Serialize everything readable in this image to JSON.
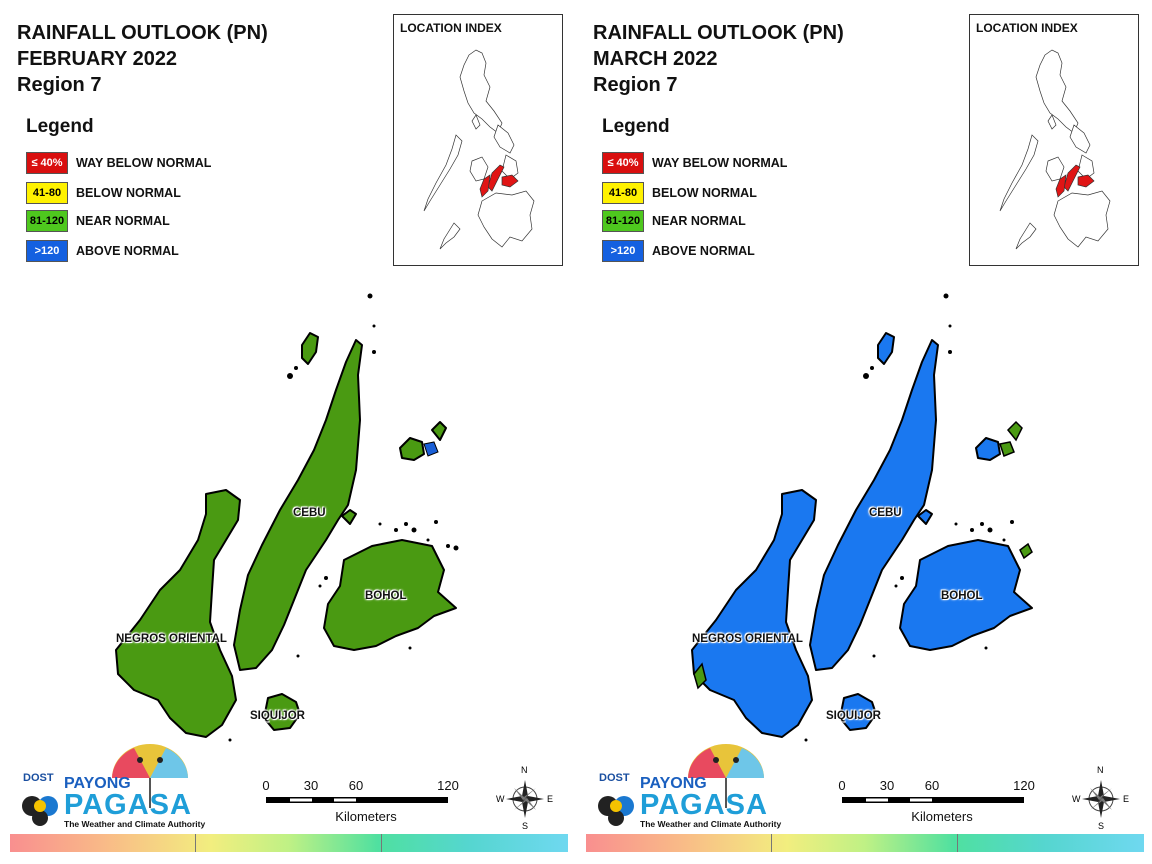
{
  "panels": [
    {
      "title_line1": "RAINFALL OUTLOOK (PN)",
      "title_line2": "FEBRUARY 2022",
      "title_line3": "Region 7",
      "fill_color": "#4a9a12",
      "accent_color": "#1a5fd6"
    },
    {
      "title_line1": "RAINFALL OUTLOOK (PN)",
      "title_line2": "MARCH 2022",
      "title_line3": "Region 7",
      "fill_color": "#1a78f0",
      "accent_color": "#4a9a12"
    }
  ],
  "legend": {
    "title": "Legend",
    "items": [
      {
        "range": "≤ 40%",
        "label": "WAY BELOW NORMAL",
        "color": "#d90f0f",
        "text_color": "#ffffff"
      },
      {
        "range": "41-80",
        "label": "BELOW NORMAL",
        "color": "#fff200",
        "text_color": "#000000"
      },
      {
        "range": "81-120",
        "label": "NEAR NORMAL",
        "color": "#4ec81e",
        "text_color": "#000000"
      },
      {
        "range": ">120",
        "label": "ABOVE NORMAL",
        "color": "#1460e0",
        "text_color": "#ffffff"
      }
    ]
  },
  "location_index": {
    "title": "LOCATION INDEX",
    "highlight_color": "#e01515"
  },
  "places": {
    "cebu": "CEBU",
    "bohol": "BOHOL",
    "negros": "NEGROS ORIENTAL",
    "siquijor": "SIQUIJOR"
  },
  "scale_bar": {
    "ticks": [
      "0",
      "30",
      "60",
      "120"
    ],
    "unit": "Kilometers"
  },
  "compass": {
    "n": "N",
    "s": "S",
    "e": "E",
    "w": "W",
    "icon": "compass-rose-icon"
  },
  "logo": {
    "dost": "DOST",
    "payong": "PAYONG",
    "pagasa": "PAGASA",
    "tagline": "The Weather and Climate Authority",
    "icon": "umbrella-logo-icon"
  }
}
